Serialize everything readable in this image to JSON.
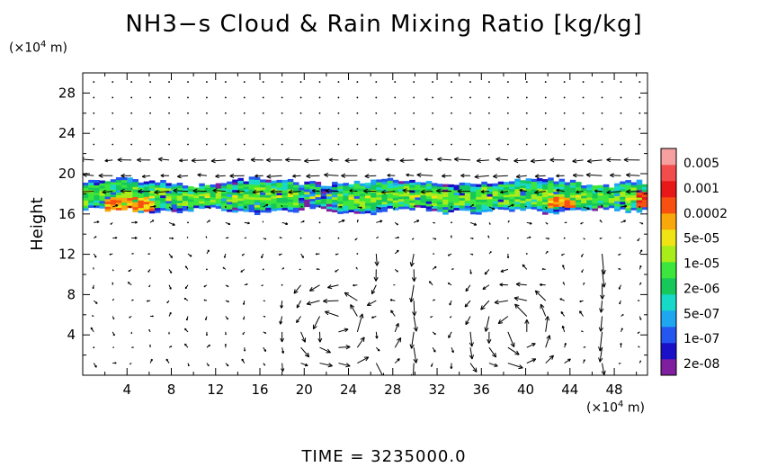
{
  "chart_data": {
    "type": "heatmap",
    "title": "NH3−s Cloud & Rain Mixing Ratio [kg/kg]",
    "ylabel": "Height",
    "x_unit": "(×10",
    "x_unit_exp": "4",
    "x_unit_tail": " m)",
    "y_unit": "(×10",
    "y_unit_exp": "4",
    "y_unit_tail": " m)",
    "x_ticks": [
      "4",
      "8",
      "12",
      "16",
      "20",
      "24",
      "28",
      "32",
      "36",
      "40",
      "44",
      "48"
    ],
    "y_ticks": [
      "4",
      "8",
      "12",
      "16",
      "20",
      "24",
      "28"
    ],
    "xlim": [
      0,
      51
    ],
    "ylim": [
      0,
      30
    ],
    "colorbar": {
      "labels": [
        "0.005",
        "0.001",
        "0.0002",
        "5e-05",
        "1e-05",
        "2e-06",
        "5e-07",
        "1e-07",
        "2e-08"
      ],
      "colors": [
        "#7f1fa0",
        "#1a10c8",
        "#2456f0",
        "#1fa6f0",
        "#18d8c8",
        "#16c85a",
        "#3ce63c",
        "#a8ec1a",
        "#f0e414",
        "#f8a80a",
        "#f85010",
        "#e81818",
        "#f24c4c",
        "#f6a0a0"
      ]
    },
    "cloud_layer": {
      "height_range": [
        16,
        19.5
      ],
      "x_range": [
        0,
        51
      ],
      "peak_regions": [
        {
          "x": [
            2,
            6
          ],
          "y": [
            16.2,
            17.5
          ],
          "level": "0.0002"
        },
        {
          "x": [
            42,
            44
          ],
          "y": [
            16.5,
            17.5
          ],
          "level": "0.0002"
        },
        {
          "x": [
            50,
            51
          ],
          "y": [
            16.5,
            18
          ],
          "level": "0.001"
        }
      ]
    },
    "vector_field": {
      "description_shown": "wind vectors",
      "vortex_centers_x": [
        23,
        39
      ]
    },
    "time_label": "TIME  =  3235000.0"
  }
}
